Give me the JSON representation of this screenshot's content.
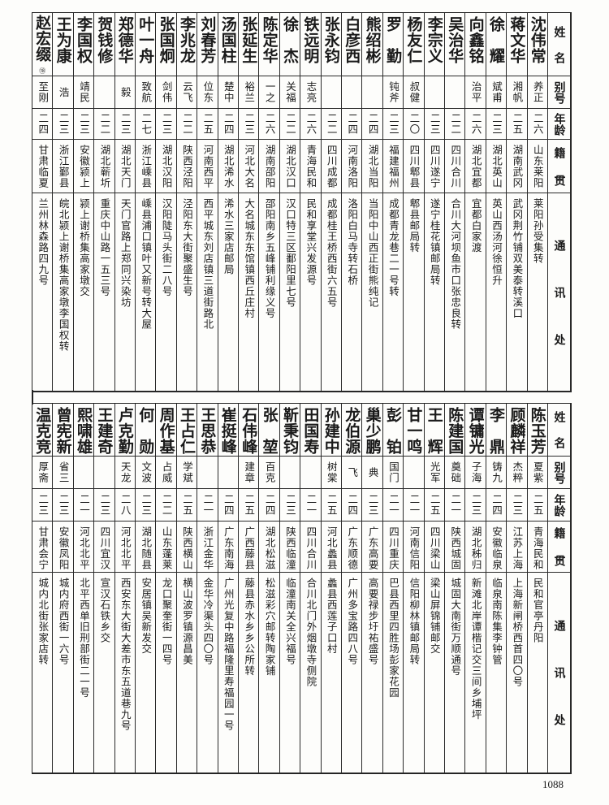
{
  "headers": {
    "name": "姓名",
    "alias": "别号",
    "age": "年龄",
    "native": "籍贯",
    "address": "通讯处"
  },
  "top_table": [
    {
      "name": "沈伟常",
      "alias": "养正",
      "age": "二六",
      "native": "山东莱阳",
      "address": "莱阳孙受集转"
    },
    {
      "name": "蒋文华",
      "alias": "湘帆",
      "age": "二五",
      "native": "湖南武冈",
      "address": "武冈荆竹铺双美泰转溪口"
    },
    {
      "name": "徐耀",
      "alias": "斌甫",
      "age": "二三",
      "native": "湖北英山",
      "address": "英山西汤河徐恒升"
    },
    {
      "name": "向鑫铭",
      "alias": "治平",
      "age": "二六",
      "native": "湖北宜都",
      "address": "宜都白家渡"
    },
    {
      "name": "吴治华",
      "alias": "",
      "age": "二二",
      "native": "四川合川",
      "address": "合川大河坝鱼市口张忠良转"
    },
    {
      "name": "李宗义",
      "alias": "",
      "age": "二三",
      "native": "四川遂宁",
      "address": "遂宁桂花镇邮局转"
    },
    {
      "name": "杨友仁",
      "alias": "叔健",
      "age": "二〇",
      "native": "四川郫县",
      "address": "郫县邮局转"
    },
    {
      "name": "罗勤",
      "alias": "钝斧",
      "age": "二三",
      "native": "福建福州",
      "address": "成都青龙巷二一号转"
    },
    {
      "name": "熊绍彬",
      "alias": "",
      "age": "二四",
      "native": "湖北当阳",
      "address": "当阳中山西正街熊纯记"
    },
    {
      "name": "白彦西",
      "alias": "",
      "age": "二四",
      "native": "河南洛阳",
      "address": "洛阳白马寺转石桥"
    },
    {
      "name": "张永钧",
      "alias": "",
      "age": "二二",
      "native": "四川成都",
      "address": "成都桂王桥西街六五号"
    },
    {
      "name": "铁远明",
      "alias": "志亮",
      "age": "二六",
      "native": "青海民和",
      "address": "民和享堂兴发源号"
    },
    {
      "name": "徐杰",
      "alias": "关福",
      "age": "二二",
      "native": "湖北汉口",
      "address": "汉口特三区鄱阳里七号"
    },
    {
      "name": "陈定华",
      "alias": "一之",
      "age": "二六",
      "native": "湖南邵阳",
      "address": "邵阳南乡五峰铺利缘义号"
    },
    {
      "name": "张延生",
      "alias": "裕兰",
      "age": "二三",
      "native": "河北大名",
      "address": "大名城东东馆镇西丘庄村"
    },
    {
      "name": "汤国柱",
      "alias": "楚中",
      "age": "二四",
      "native": "湖北浠水",
      "address": "浠水三家店邮局"
    },
    {
      "name": "刘春芳",
      "alias": "位东",
      "age": "二五",
      "native": "河南西平",
      "address": "西平城东刘店镇三道街路北"
    },
    {
      "name": "李兆龙",
      "alias": "云飞",
      "age": "二二",
      "native": "陕西泾阳",
      "address": "泾阳东大街聚盛生号"
    },
    {
      "name": "张国炯",
      "alias": "剑伟",
      "age": "二三",
      "native": "湖北汉阳",
      "address": "汉阳陡马头街二八号"
    },
    {
      "name": "叶一舟",
      "alias": "致航",
      "age": "二七",
      "native": "浙江嵊县",
      "address": "嵊县浦口镇叶又新号转大屋"
    },
    {
      "name": "郑德华",
      "alias": "毅",
      "age": "二三",
      "native": "湖北天门",
      "address": "天门官路上郑同兴染坊"
    },
    {
      "name": "贺钱修",
      "alias": "",
      "age": "二二",
      "native": "湖北蕲圻",
      "address": "重庆中山路一五三号"
    },
    {
      "name": "李国权",
      "alias": "靖民",
      "age": "二三",
      "native": "安徽颍上",
      "address": "颍上谢桥集高家墩交"
    },
    {
      "name": "王为康",
      "alias": "浩",
      "age": "二三",
      "native": "浙江鄞县",
      "address": "皖北颍上谢桥集高家墩李国权转"
    },
    {
      "name": "赵宏缀",
      "note": "⑱",
      "alias": "至刚",
      "age": "二四",
      "native": "甘肃临夏",
      "address": "兰州林森路四九号"
    }
  ],
  "bottom_table": [
    {
      "name": "陈玉芳",
      "alias": "夏紫",
      "age": "二五",
      "native": "青海民和",
      "address": "民和官亭丹阳"
    },
    {
      "name": "顾麟祥",
      "alias": "杰粹",
      "age": "二三",
      "native": "江苏上海",
      "address": "上海新闸桥西首四〇号"
    },
    {
      "name": "李鼎",
      "alias": "铸九",
      "age": "二四",
      "native": "安徽临泉",
      "address": "临泉南陈集李钟管"
    },
    {
      "name": "谭镛光",
      "alias": "子海",
      "age": "二三",
      "native": "湖北秭归",
      "address": "新滩北岸谭楷记交三间乡埔坪"
    },
    {
      "name": "陈建国",
      "alias": "奠础",
      "age": "二一",
      "native": "陕西城固",
      "address": "城固大南街万顺通号"
    },
    {
      "name": "王辉",
      "alias": "光军",
      "age": "二五",
      "native": "四川梁山",
      "address": "梁山屏锦铺邮交"
    },
    {
      "name": "甘一鸣",
      "alias": "",
      "age": "二一",
      "native": "河南信阳",
      "address": "信阳柳林镇邮局转"
    },
    {
      "name": "彭铂",
      "alias": "国门",
      "age": "二一",
      "native": "四川重庆",
      "address": "巴县西里四胜场彭家花园"
    },
    {
      "name": "巢少鹏",
      "alias": "典",
      "age": "二三",
      "native": "广东高要",
      "address": "高要禄步圩祐盛号"
    },
    {
      "name": "龙伯源",
      "alias": "飞",
      "age": "二四",
      "native": "广东顺德",
      "address": "广州多宝路四八号"
    },
    {
      "name": "孙建中",
      "alias": "树棠",
      "age": "二五",
      "native": "河北蠡县",
      "address": "蠡县西莲子口村"
    },
    {
      "name": "田国寿",
      "alias": "",
      "age": "二一",
      "native": "四川合川",
      "address": "合川北门外烟墩寺侧院"
    },
    {
      "name": "靳秉钧",
      "alias": "",
      "age": "二三",
      "native": "陕西临潼",
      "address": "临潼南关全兴福号"
    },
    {
      "name": "张堃",
      "alias": "百克",
      "age": "二四",
      "native": "湖北松滋",
      "address": "松滋彩穴邮转陶家铺"
    },
    {
      "name": "石伟峰",
      "alias": "建章",
      "age": "二五",
      "native": "广西藤县",
      "address": "藤县赤水乡乡公所转"
    },
    {
      "name": "崔挺峰",
      "alias": "",
      "age": "二四",
      "native": "广东南海",
      "address": "广州光复中路福隆里寿福园一号"
    },
    {
      "name": "王思恭",
      "alias": "",
      "age": "二一",
      "native": "浙江金华",
      "address": "金华冷渠头四〇号"
    },
    {
      "name": "王占仁",
      "alias": "学斌",
      "age": "二五",
      "native": "陕西横山",
      "address": "横山波罗镇源昌美"
    },
    {
      "name": "周作基",
      "alias": "占威",
      "age": "二二",
      "native": "山东蓬莱",
      "address": "龙口聚奎街一四号"
    },
    {
      "name": "何勋",
      "alias": "文波",
      "age": "二三",
      "native": "湖北随县",
      "address": "安居镇吴新发交"
    },
    {
      "name": "卢克勤",
      "alias": "天龙",
      "age": "二八",
      "native": "河北北平",
      "address": "西安东大街大差市东五道巷九号"
    },
    {
      "name": "王建奇",
      "alias": "",
      "age": "二三",
      "native": "四川宜汉",
      "address": "宣汉石铁乡交"
    },
    {
      "name": "熙啸雄",
      "alias": "",
      "age": "二一",
      "native": "河北北平",
      "address": "北平西单旧刑部街二一号"
    },
    {
      "name": "曾宪新",
      "alias": "省三",
      "age": "二三",
      "native": "安徽凤阳",
      "address": "城内府西街一六号"
    },
    {
      "name": "温克竞",
      "alias": "厚斋",
      "age": "二三",
      "native": "甘肃会宁",
      "address": "城内北街张家店转"
    }
  ],
  "page_number": "1088"
}
